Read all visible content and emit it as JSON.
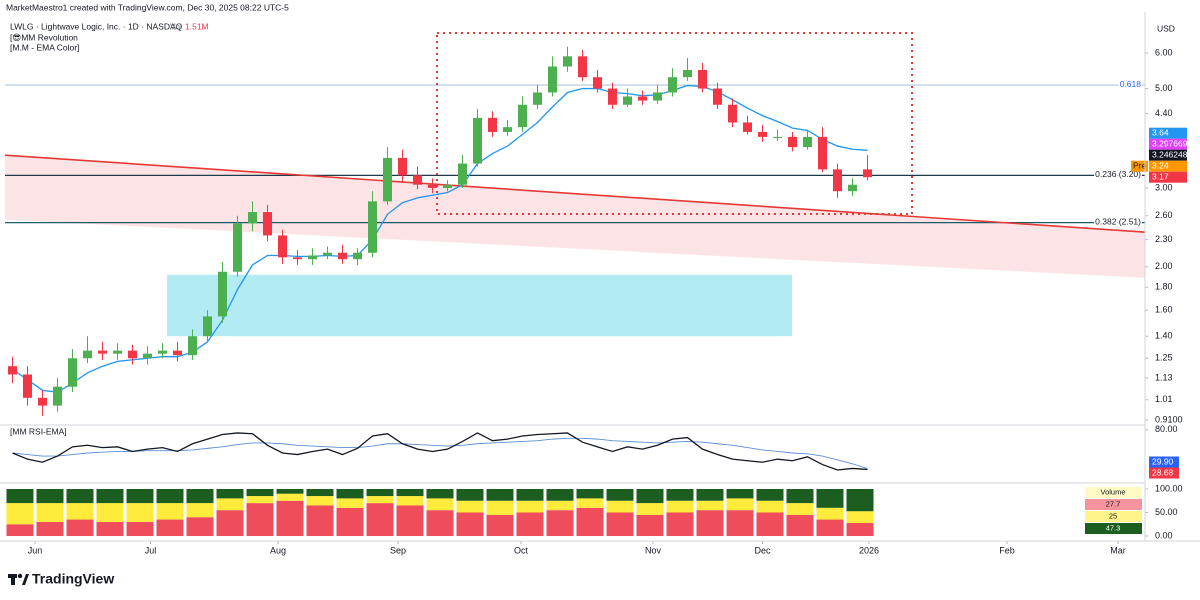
{
  "header": {
    "credit": "MarketMaestro1 created with TradingView.com, Dec 30, 2025 08:22 UTC-5",
    "symbol": "LWLG · Lightwave Logic, Inc. · 1D · NASDAQ",
    "vol_label": "Vol",
    "vol_value": "1.51M",
    "indicators": [
      "[😎MM Revolution",
      "[M.M - EMA Color]"
    ],
    "currency": "USD"
  },
  "brand": "TradingView",
  "chart_data": [
    {
      "type": "candlestick",
      "log": true,
      "up_color": "#4caf50",
      "down_color": "#f23645",
      "open": [
        1.2,
        1.15,
        1.02,
        0.98,
        1.08,
        1.25,
        1.3,
        1.28,
        1.3,
        1.25,
        1.28,
        1.3,
        1.27,
        1.4,
        1.55,
        1.95,
        2.5,
        2.65,
        2.35,
        2.1,
        2.08,
        2.12,
        2.15,
        2.08,
        2.15,
        2.8,
        3.5,
        3.2,
        3.05,
        3.0,
        3.05,
        3.4,
        4.3,
        4.0,
        4.1,
        4.6,
        4.9,
        5.6,
        5.9,
        5.3,
        5.0,
        4.6,
        4.8,
        4.7,
        4.9,
        5.3,
        5.5,
        5.0,
        4.6,
        4.2,
        4.0,
        3.9,
        3.9,
        3.7,
        3.9,
        3.3,
        2.95,
        3.3
      ],
      "high": [
        1.26,
        1.2,
        1.06,
        1.13,
        1.31,
        1.4,
        1.36,
        1.35,
        1.34,
        1.33,
        1.35,
        1.36,
        1.45,
        1.6,
        2.05,
        2.6,
        2.8,
        2.75,
        2.42,
        2.18,
        2.2,
        2.22,
        2.24,
        2.2,
        2.95,
        3.7,
        3.65,
        3.35,
        3.15,
        3.12,
        3.55,
        4.5,
        4.45,
        4.25,
        4.8,
        5.1,
        5.9,
        6.2,
        6.1,
        5.5,
        5.15,
        5.0,
        4.95,
        5.1,
        5.55,
        5.85,
        5.7,
        5.15,
        4.75,
        4.35,
        4.15,
        4.05,
        4.0,
        4.05,
        4.1,
        3.4,
        3.15,
        3.55
      ],
      "low": [
        1.1,
        0.98,
        0.93,
        0.95,
        1.05,
        1.22,
        1.24,
        1.24,
        1.21,
        1.21,
        1.25,
        1.23,
        1.24,
        1.36,
        1.5,
        1.9,
        2.4,
        2.28,
        2.03,
        2.02,
        2.02,
        2.08,
        2.03,
        2.02,
        2.1,
        2.75,
        3.1,
        2.98,
        2.92,
        2.95,
        3.0,
        3.35,
        3.9,
        3.92,
        4.0,
        4.5,
        4.8,
        5.45,
        5.2,
        4.9,
        4.5,
        4.55,
        4.6,
        4.62,
        4.8,
        5.2,
        4.9,
        4.5,
        4.1,
        3.95,
        3.8,
        3.82,
        3.62,
        3.65,
        3.25,
        2.85,
        2.88,
        3.12
      ],
      "close": [
        1.15,
        1.02,
        0.98,
        1.08,
        1.25,
        1.3,
        1.28,
        1.3,
        1.25,
        1.28,
        1.3,
        1.27,
        1.4,
        1.55,
        1.95,
        2.5,
        2.65,
        2.35,
        2.1,
        2.08,
        2.12,
        2.15,
        2.08,
        2.15,
        2.8,
        3.5,
        3.2,
        3.05,
        3.0,
        3.05,
        3.4,
        4.3,
        4.0,
        4.1,
        4.6,
        4.9,
        5.6,
        5.9,
        5.3,
        5.0,
        4.6,
        4.8,
        4.7,
        4.9,
        5.3,
        5.5,
        5.0,
        4.6,
        4.2,
        4.0,
        3.9,
        3.9,
        3.7,
        3.9,
        3.3,
        2.95,
        3.05,
        3.17
      ],
      "ema": {
        "color": "#2196f3",
        "values": [
          1.18,
          1.12,
          1.06,
          1.05,
          1.1,
          1.16,
          1.2,
          1.23,
          1.24,
          1.25,
          1.26,
          1.26,
          1.29,
          1.36,
          1.52,
          1.78,
          2.02,
          2.12,
          2.12,
          2.11,
          2.11,
          2.12,
          2.11,
          2.12,
          2.3,
          2.62,
          2.78,
          2.85,
          2.89,
          2.93,
          3.05,
          3.4,
          3.58,
          3.72,
          3.95,
          4.2,
          4.55,
          4.9,
          5.0,
          5.0,
          4.9,
          4.87,
          4.82,
          4.84,
          4.95,
          5.08,
          5.05,
          4.92,
          4.72,
          4.52,
          4.35,
          4.22,
          4.08,
          4.03,
          3.85,
          3.72,
          3.66,
          3.64
        ]
      },
      "ylim": [
        0.887,
        7.41
      ],
      "yticks": [
        {
          "value": 6,
          "label": "6.00"
        },
        {
          "value": 5,
          "label": "5.00"
        },
        {
          "value": 4.4,
          "label": "4.40"
        },
        {
          "value": 3,
          "label": "3.00"
        },
        {
          "value": 2.6,
          "label": "2.60"
        },
        {
          "value": 2.3,
          "label": "2.30"
        },
        {
          "value": 2,
          "label": "2.00"
        },
        {
          "value": 1.8,
          "label": "1.80"
        },
        {
          "value": 1.6,
          "label": "1.60"
        },
        {
          "value": 1.4,
          "label": "1.40"
        },
        {
          "value": 1.25,
          "label": "1.25"
        },
        {
          "value": 1.13,
          "label": "1.13"
        },
        {
          "value": 1.01,
          "label": "1.01"
        },
        {
          "value": 0.91,
          "label": "0.9100"
        }
      ],
      "xlim": [
        -0.5,
        75.5
      ],
      "xticks": [
        {
          "value": 1.5,
          "label": "Jun"
        },
        {
          "value": 9.2,
          "label": "Jul"
        },
        {
          "value": 17.7,
          "label": "Aug"
        },
        {
          "value": 25.7,
          "label": "Sep"
        },
        {
          "value": 33.9,
          "label": "Oct"
        },
        {
          "value": 42.7,
          "label": "Nov"
        },
        {
          "value": 50,
          "label": "Dec"
        },
        {
          "value": 57.1,
          "label": "2026"
        },
        {
          "value": 66.3,
          "label": "Feb"
        },
        {
          "value": 73.7,
          "label": "Mar"
        }
      ],
      "levels": [
        {
          "label": "0.618",
          "value": 5.09,
          "color": "#b2c7d9"
        },
        {
          "label": "0.236 (3.20)",
          "value": 3.2,
          "color": "#1d3c4a"
        },
        {
          "label": "0.382 (2.51)",
          "value": 2.51,
          "color": "#1d5c66"
        }
      ],
      "trendline": {
        "start": 3.55,
        "end": 2.39,
        "color": "#e53935"
      },
      "channel": {
        "start": 2.55,
        "end": 1.89,
        "color": "#fbdde0"
      },
      "zone": {
        "low": 1.4,
        "high": 1.92,
        "color": "#b2ebf2"
      },
      "markers": [
        {
          "value": 3.64,
          "color": "#2196f3"
        },
        {
          "value": 3.297669,
          "color": "#e040fb"
        },
        {
          "value": 3.246248,
          "color": "#131722"
        },
        {
          "name": "Pre",
          "value": 3.24,
          "color": "#ff9800"
        },
        {
          "value": 3.17,
          "color": "#f23645"
        }
      ]
    },
    {
      "type": "line",
      "title": "[MM RSI-EMA]",
      "series": [
        {
          "color": "#131722",
          "values": [
            50,
            42,
            38,
            46,
            58,
            60,
            57,
            58,
            52,
            55,
            57,
            52,
            62,
            68,
            74,
            76,
            75,
            60,
            50,
            48,
            52,
            55,
            48,
            56,
            72,
            75,
            62,
            55,
            52,
            55,
            65,
            76,
            66,
            68,
            72,
            74,
            75,
            76,
            64,
            58,
            52,
            58,
            55,
            60,
            68,
            70,
            55,
            48,
            42,
            40,
            38,
            42,
            40,
            45,
            35,
            28,
            30,
            28.68
          ]
        },
        {
          "color": "#5b8fd6",
          "values": [
            50,
            48,
            46,
            46,
            48,
            50,
            51,
            52,
            52,
            53,
            53,
            53,
            54,
            56,
            58,
            61,
            63,
            63,
            62,
            60,
            59,
            58,
            57,
            57,
            59,
            62,
            62,
            61,
            60,
            59,
            60,
            62,
            63,
            64,
            65,
            66,
            68,
            69,
            69,
            68,
            66,
            65,
            64,
            63,
            64,
            65,
            64,
            62,
            60,
            57,
            54,
            52,
            50,
            49,
            46,
            41,
            36,
            29.9
          ]
        }
      ],
      "ylim": [
        15,
        85
      ],
      "yticks": [
        {
          "value": 80,
          "label": "80.00"
        }
      ],
      "markers": [
        {
          "value": 29.9,
          "label": "29.90",
          "color": "#2962ff"
        },
        {
          "value": 28.68,
          "label": "28.68",
          "color": "#f23645"
        }
      ]
    },
    {
      "type": "bar",
      "stacked": true,
      "series": [
        {
          "color": "#f04d5c",
          "values": [
            25,
            30,
            35,
            30,
            30,
            35,
            40,
            55,
            70,
            75,
            65,
            60,
            70,
            65,
            55,
            50,
            45,
            50,
            55,
            60,
            50,
            45,
            50,
            55,
            55,
            50,
            45,
            35,
            27.7
          ]
        },
        {
          "color": "#ffeb3b",
          "values": [
            45,
            40,
            35,
            40,
            40,
            35,
            30,
            25,
            15,
            15,
            20,
            20,
            15,
            20,
            25,
            25,
            30,
            25,
            20,
            20,
            25,
            25,
            25,
            20,
            25,
            25,
            25,
            25,
            25
          ]
        },
        {
          "color": "#1b5e20",
          "values": [
            30,
            30,
            30,
            30,
            30,
            30,
            30,
            20,
            15,
            10,
            15,
            20,
            15,
            15,
            20,
            25,
            25,
            25,
            25,
            20,
            25,
            30,
            25,
            25,
            20,
            25,
            30,
            40,
            47.3
          ]
        }
      ],
      "ylim": [
        0,
        100
      ],
      "yticks": [
        {
          "value": 100,
          "label": "100.00"
        },
        {
          "value": 50,
          "label": "50.00"
        },
        {
          "value": 0,
          "label": "0.00"
        }
      ],
      "legend_title": "Volume"
    }
  ]
}
